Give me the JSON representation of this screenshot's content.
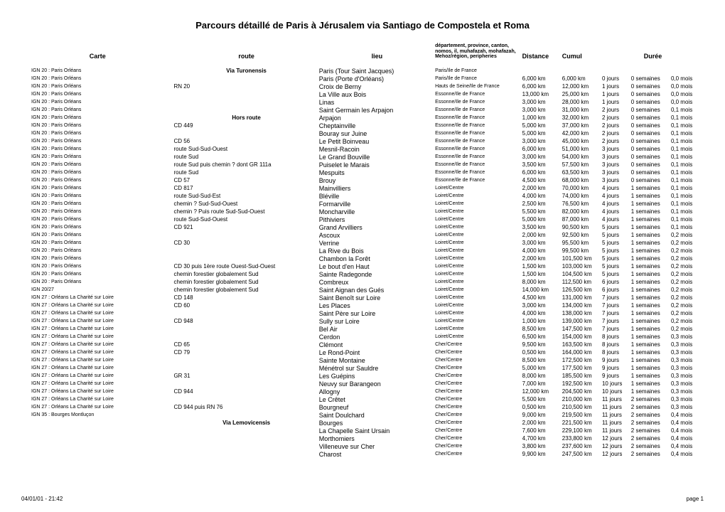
{
  "title": "Parcours détaillé de Paris à Jérusalem via Santiago de Compostela et Roma",
  "headers": {
    "carte": "Carte",
    "route": "route",
    "lieu": "lieu",
    "dept": "département, province, canton, nomos, il, muhafazah, mohafazah, Mehoz/région, peripheries",
    "distance": "Distance",
    "cumul": "Cumul",
    "duree": "Durée"
  },
  "footer": {
    "left": "04/01/01 - 21:42",
    "right": "page 1"
  },
  "rows": [
    {
      "carte": "IGN 20 : Paris Orléans",
      "route": "Via Turonensis",
      "routeBold": true,
      "lieu": "Paris (Tour Saint Jacques)",
      "dept": "Paris/Ile de France",
      "dist": "",
      "cumul": "",
      "jours": "",
      "sem": "",
      "mois": ""
    },
    {
      "carte": "IGN 20 : Paris Orléans",
      "route": "",
      "lieu": "Paris (Porte d'Orléans)",
      "dept": "Paris/Ile de France",
      "dist": "6,000 km",
      "cumul": "6,000 km",
      "jours": "0 jours",
      "sem": "0 semaines",
      "mois": "0,0 mois"
    },
    {
      "carte": "IGN 20 : Paris Orléans",
      "route": "RN 20",
      "lieu": "Croix de Berny",
      "dept": "Hauts de Seine/Ile de France",
      "dist": "6,000 km",
      "cumul": "12,000 km",
      "jours": "1 jours",
      "sem": "0 semaines",
      "mois": "0,0 mois"
    },
    {
      "carte": "IGN 20 : Paris Orléans",
      "route": "",
      "lieu": "La Ville aux Bois",
      "dept": "Essonne/Ile de France",
      "dist": "13,000 km",
      "cumul": "25,000 km",
      "jours": "1 jours",
      "sem": "0 semaines",
      "mois": "0,0 mois"
    },
    {
      "carte": "IGN 20 : Paris Orléans",
      "route": "",
      "lieu": "Linas",
      "dept": "Essonne/Ile de France",
      "dist": "3,000 km",
      "cumul": "28,000 km",
      "jours": "1 jours",
      "sem": "0 semaines",
      "mois": "0,0 mois"
    },
    {
      "carte": "IGN 20 : Paris Orléans",
      "route": "",
      "lieu": "Saint Germain les Arpajon",
      "dept": "Essonne/Ile de France",
      "dist": "3,000 km",
      "cumul": "31,000 km",
      "jours": "2 jours",
      "sem": "0 semaines",
      "mois": "0,1 mois"
    },
    {
      "carte": "IGN 20 : Paris Orléans",
      "route": "Hors route",
      "routeBold": true,
      "lieu": "Arpajon",
      "dept": "Essonne/Ile de France",
      "dist": "1,000 km",
      "cumul": "32,000 km",
      "jours": "2 jours",
      "sem": "0 semaines",
      "mois": "0,1 mois"
    },
    {
      "carte": "IGN 20 : Paris Orléans",
      "route": "CD 449",
      "lieu": "Cheptainville",
      "dept": "Essonne/Ile de France",
      "dist": "5,000 km",
      "cumul": "37,000 km",
      "jours": "2 jours",
      "sem": "0 semaines",
      "mois": "0,1 mois"
    },
    {
      "carte": "IGN 20 : Paris Orléans",
      "route": "",
      "lieu": "Bouray sur Juine",
      "dept": "Essonne/Ile de France",
      "dist": "5,000 km",
      "cumul": "42,000 km",
      "jours": "2 jours",
      "sem": "0 semaines",
      "mois": "0,1 mois"
    },
    {
      "carte": "IGN 20 : Paris Orléans",
      "route": "CD 56",
      "lieu": "Le Petit Boinveau",
      "dept": "Essonne/Ile de France",
      "dist": "3,000 km",
      "cumul": "45,000 km",
      "jours": "2 jours",
      "sem": "0 semaines",
      "mois": "0,1 mois"
    },
    {
      "carte": "IGN 20 : Paris Orléans",
      "route": "route Sud-Sud-Ouest",
      "lieu": "Mesnil-Racoin",
      "dept": "Essonne/Ile de France",
      "dist": "6,000 km",
      "cumul": "51,000 km",
      "jours": "3 jours",
      "sem": "0 semaines",
      "mois": "0,1 mois"
    },
    {
      "carte": "IGN 20 : Paris Orléans",
      "route": "route Sud",
      "lieu": "Le Grand Bouville",
      "dept": "Essonne/Ile de France",
      "dist": "3,000 km",
      "cumul": "54,000 km",
      "jours": "3 jours",
      "sem": "0 semaines",
      "mois": "0,1 mois"
    },
    {
      "carte": "IGN 20 : Paris Orléans",
      "route": "route Sud puis chemin ? dont GR 111a",
      "lieu": "Puiselet le Marais",
      "dept": "Essonne/Ile de France",
      "dist": "3,500 km",
      "cumul": "57,500 km",
      "jours": "3 jours",
      "sem": "0 semaines",
      "mois": "0,1 mois"
    },
    {
      "carte": "IGN 20 : Paris Orléans",
      "route": "route Sud",
      "lieu": "Mespuits",
      "dept": "Essonne/Ile de France",
      "dist": "6,000 km",
      "cumul": "63,500 km",
      "jours": "3 jours",
      "sem": "0 semaines",
      "mois": "0,1 mois"
    },
    {
      "carte": "IGN 20 : Paris Orléans",
      "route": "CD 57",
      "lieu": "Brouy",
      "dept": "Essonne/Ile de France",
      "dist": "4,500 km",
      "cumul": "68,000 km",
      "jours": "3 jours",
      "sem": "0 semaines",
      "mois": "0,1 mois"
    },
    {
      "carte": "IGN 20 : Paris Orléans",
      "route": "CD 817",
      "lieu": "Mainvilliers",
      "dept": "Loiret/Centre",
      "dist": "2,000 km",
      "cumul": "70,000 km",
      "jours": "4 jours",
      "sem": "1 semaines",
      "mois": "0,1 mois"
    },
    {
      "carte": "IGN 20 : Paris Orléans",
      "route": "route Sud-Sud-Est",
      "lieu": "Bléville",
      "dept": "Loiret/Centre",
      "dist": "4,000 km",
      "cumul": "74,000 km",
      "jours": "4 jours",
      "sem": "1 semaines",
      "mois": "0,1 mois"
    },
    {
      "carte": "IGN 20 : Paris Orléans",
      "route": "chemin ? Sud-Sud-Ouest",
      "lieu": "Formarville",
      "dept": "Loiret/Centre",
      "dist": "2,500 km",
      "cumul": "76,500 km",
      "jours": "4 jours",
      "sem": "1 semaines",
      "mois": "0,1 mois"
    },
    {
      "carte": "IGN 20 : Paris Orléans",
      "route": "chemin ? Puis route Sud-Sud-Ouest",
      "lieu": "Moncharville",
      "dept": "Loiret/Centre",
      "dist": "5,500 km",
      "cumul": "82,000 km",
      "jours": "4 jours",
      "sem": "1 semaines",
      "mois": "0,1 mois"
    },
    {
      "carte": "IGN 20 : Paris Orléans",
      "route": "route Sud-Sud-Ouest",
      "lieu": "Pithiviers",
      "dept": "Loiret/Centre",
      "dist": "5,000 km",
      "cumul": "87,000 km",
      "jours": "4 jours",
      "sem": "1 semaines",
      "mois": "0,1 mois"
    },
    {
      "carte": "IGN 20 : Paris Orléans",
      "route": "CD 921",
      "lieu": "Grand Arvilliers",
      "dept": "Loiret/Centre",
      "dist": "3,500 km",
      "cumul": "90,500 km",
      "jours": "5 jours",
      "sem": "1 semaines",
      "mois": "0,1 mois"
    },
    {
      "carte": "IGN 20 : Paris Orléans",
      "route": "",
      "lieu": "Ascoux",
      "dept": "Loiret/Centre",
      "dist": "2,000 km",
      "cumul": "92,500 km",
      "jours": "5 jours",
      "sem": "1 semaines",
      "mois": "0,2 mois"
    },
    {
      "carte": "IGN 20 : Paris Orléans",
      "route": "CD 30",
      "lieu": "Verrine",
      "dept": "Loiret/Centre",
      "dist": "3,000 km",
      "cumul": "95,500 km",
      "jours": "5 jours",
      "sem": "1 semaines",
      "mois": "0,2 mois"
    },
    {
      "carte": "IGN 20 : Paris Orléans",
      "route": "",
      "lieu": "La Rive du Bois",
      "dept": "Loiret/Centre",
      "dist": "4,000 km",
      "cumul": "99,500 km",
      "jours": "5 jours",
      "sem": "1 semaines",
      "mois": "0,2 mois"
    },
    {
      "carte": "IGN 20 : Paris Orléans",
      "route": "",
      "lieu": "Chambon la Forêt",
      "dept": "Loiret/Centre",
      "dist": "2,000 km",
      "cumul": "101,500 km",
      "jours": "5 jours",
      "sem": "1 semaines",
      "mois": "0,2 mois"
    },
    {
      "carte": "IGN 20 : Paris Orléans",
      "route": "CD 30 puis 1ère route Ouest-Sud-Ouest",
      "lieu": "Le bout d'en Haut",
      "dept": "Loiret/Centre",
      "dist": "1,500 km",
      "cumul": "103,000 km",
      "jours": "5 jours",
      "sem": "1 semaines",
      "mois": "0,2 mois"
    },
    {
      "carte": "IGN 20 : Paris Orléans",
      "route": "chemin forestier globalement Sud",
      "lieu": "Sainte Radegonde",
      "dept": "Loiret/Centre",
      "dist": "1,500 km",
      "cumul": "104,500 km",
      "jours": "5 jours",
      "sem": "1 semaines",
      "mois": "0,2 mois"
    },
    {
      "carte": "IGN 20 : Paris Orléans",
      "route": "chemin forestier globalement Sud",
      "lieu": "Combreux",
      "dept": "Loiret/Centre",
      "dist": "8,000 km",
      "cumul": "112,500 km",
      "jours": "6 jours",
      "sem": "1 semaines",
      "mois": "0,2 mois"
    },
    {
      "carte": "IGN 20/27",
      "route": "chemin forestier globalement Sud",
      "lieu": "Saint Aignan des Gués",
      "dept": "Loiret/Centre",
      "dist": "14,000 km",
      "cumul": "126,500 km",
      "jours": "6 jours",
      "sem": "1 semaines",
      "mois": "0,2 mois"
    },
    {
      "carte": "IGN 27 : Orléans La Charité sur Loire",
      "route": "CD 148",
      "lieu": "Saint Benoît sur Loire",
      "dept": "Loiret/Centre",
      "dist": "4,500 km",
      "cumul": "131,000 km",
      "jours": "7 jours",
      "sem": "1 semaines",
      "mois": "0,2 mois"
    },
    {
      "carte": "IGN 27 : Orléans La Charité sur Loire",
      "route": "CD 60",
      "lieu": "Les Places",
      "dept": "Loiret/Centre",
      "dist": "3,000 km",
      "cumul": "134,000 km",
      "jours": "7 jours",
      "sem": "1 semaines",
      "mois": "0,2 mois"
    },
    {
      "carte": "IGN 27 : Orléans La Charité sur Loire",
      "route": "",
      "lieu": "Saint Père sur Loire",
      "dept": "Loiret/Centre",
      "dist": "4,000 km",
      "cumul": "138,000 km",
      "jours": "7 jours",
      "sem": "1 semaines",
      "mois": "0,2 mois"
    },
    {
      "carte": "IGN 27 : Orléans La Charité sur Loire",
      "route": "CD 948",
      "lieu": "Sully sur Loire",
      "dept": "Loiret/Centre",
      "dist": "1,000 km",
      "cumul": "139,000 km",
      "jours": "7 jours",
      "sem": "1 semaines",
      "mois": "0,2 mois"
    },
    {
      "carte": "IGN 27 : Orléans La Charité sur Loire",
      "route": "",
      "lieu": "Bel Air",
      "dept": "Loiret/Centre",
      "dist": "8,500 km",
      "cumul": "147,500 km",
      "jours": "7 jours",
      "sem": "1 semaines",
      "mois": "0,2 mois"
    },
    {
      "carte": "IGN 27 : Orléans La Charité sur Loire",
      "route": "",
      "lieu": "Cerdon",
      "dept": "Loiret/Centre",
      "dist": "6,500 km",
      "cumul": "154,000 km",
      "jours": "8 jours",
      "sem": "1 semaines",
      "mois": "0,3 mois"
    },
    {
      "carte": "IGN 27 : Orléans La Charité sur Loire",
      "route": "CD 65",
      "lieu": "Clémont",
      "dept": "Cher/Centre",
      "dist": "9,500 km",
      "cumul": "163,500 km",
      "jours": "8 jours",
      "sem": "1 semaines",
      "mois": "0,3 mois"
    },
    {
      "carte": "IGN 27 : Orléans La Charité sur Loire",
      "route": "CD 79",
      "lieu": "Le Rond-Point",
      "dept": "Cher/Centre",
      "dist": "0,500 km",
      "cumul": "164,000 km",
      "jours": "8 jours",
      "sem": "1 semaines",
      "mois": "0,3 mois"
    },
    {
      "carte": "IGN 27 : Orléans La Charité sur Loire",
      "route": "",
      "lieu": "Sainte Montaine",
      "dept": "Cher/Centre",
      "dist": "8,500 km",
      "cumul": "172,500 km",
      "jours": "9 jours",
      "sem": "1 semaines",
      "mois": "0,3 mois"
    },
    {
      "carte": "IGN 27 : Orléans La Charité sur Loire",
      "route": "",
      "lieu": "Ménétrol sur Sauldre",
      "dept": "Cher/Centre",
      "dist": "5,000 km",
      "cumul": "177,500 km",
      "jours": "9 jours",
      "sem": "1 semaines",
      "mois": "0,3 mois"
    },
    {
      "carte": "IGN 27 : Orléans La Charité sur Loire",
      "route": "GR 31",
      "lieu": "Les Guépins",
      "dept": "Cher/Centre",
      "dist": "8,000 km",
      "cumul": "185,500 km",
      "jours": "9 jours",
      "sem": "1 semaines",
      "mois": "0,3 mois"
    },
    {
      "carte": "IGN 27 : Orléans La Charité sur Loire",
      "route": "",
      "lieu": "Neuvy sur Barangeon",
      "dept": "Cher/Centre",
      "dist": "7,000 km",
      "cumul": "192,500 km",
      "jours": "10 jours",
      "sem": "1 semaines",
      "mois": "0,3 mois"
    },
    {
      "carte": "IGN 27 : Orléans La Charité sur Loire",
      "route": "CD 944",
      "lieu": "Allogny",
      "dept": "Cher/Centre",
      "dist": "12,000 km",
      "cumul": "204,500 km",
      "jours": "10 jours",
      "sem": "1 semaines",
      "mois": "0,3 mois"
    },
    {
      "carte": "IGN 27 : Orléans La Charité sur Loire",
      "route": "",
      "lieu": "Le Crêtet",
      "dept": "Cher/Centre",
      "dist": "5,500 km",
      "cumul": "210,000 km",
      "jours": "11 jours",
      "sem": "2 semaines",
      "mois": "0,3 mois"
    },
    {
      "carte": "IGN 27 : Orléans La Charité sur Loire",
      "route": "CD 944 puis RN 76",
      "lieu": "Bourgneuf",
      "dept": "Cher/Centre",
      "dist": "0,500 km",
      "cumul": "210,500 km",
      "jours": "11 jours",
      "sem": "2 semaines",
      "mois": "0,3 mois"
    },
    {
      "carte": "IGN 35 : Bourges Montluçon",
      "route": "",
      "lieu": "Saint Doulchard",
      "dept": "Cher/Centre",
      "dist": "9,000 km",
      "cumul": "219,500 km",
      "jours": "11 jours",
      "sem": "2 semaines",
      "mois": "0,4 mois"
    },
    {
      "carte": "",
      "route": "Via Lemovicensis",
      "routeBold": true,
      "lieu": "Bourges",
      "dept": "Cher/Centre",
      "dist": "2,000 km",
      "cumul": "221,500 km",
      "jours": "11 jours",
      "sem": "2 semaines",
      "mois": "0,4 mois"
    },
    {
      "carte": "",
      "route": "",
      "lieu": "La Chapelle Saint Ursain",
      "dept": "Cher/Centre",
      "dist": "7,600 km",
      "cumul": "229,100 km",
      "jours": "11 jours",
      "sem": "2 semaines",
      "mois": "0,4 mois"
    },
    {
      "carte": "",
      "route": "",
      "lieu": "Morthomiers",
      "dept": "Cher/Centre",
      "dist": "4,700 km",
      "cumul": "233,800 km",
      "jours": "12 jours",
      "sem": "2 semaines",
      "mois": "0,4 mois"
    },
    {
      "carte": "",
      "route": "",
      "lieu": "Villeneuve sur Cher",
      "dept": "Cher/Centre",
      "dist": "3,800 km",
      "cumul": "237,600 km",
      "jours": "12 jours",
      "sem": "2 semaines",
      "mois": "0,4 mois"
    },
    {
      "carte": "",
      "route": "",
      "lieu": "Charost",
      "dept": "Cher/Centre",
      "dist": "9,900 km",
      "cumul": "247,500 km",
      "jours": "12 jours",
      "sem": "2 semaines",
      "mois": "0,4 mois"
    }
  ]
}
